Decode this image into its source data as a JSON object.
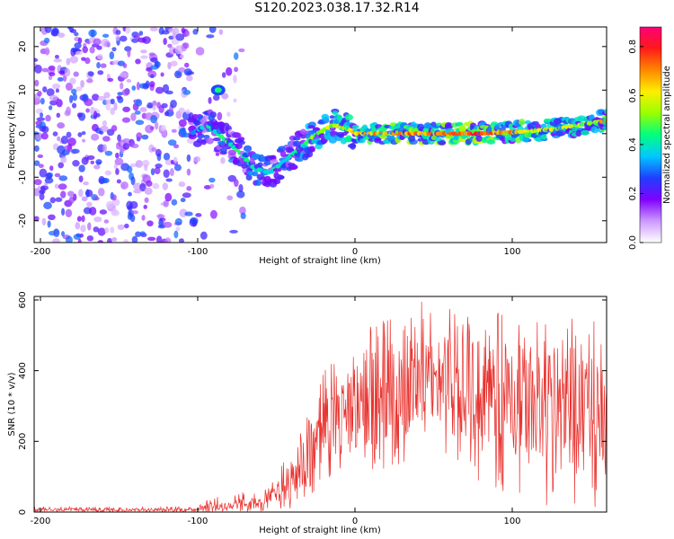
{
  "title": "S120.2023.038.17.32.R14",
  "chart_data": [
    {
      "type": "heatmap",
      "xlabel": "Height of straight line (km)",
      "ylabel": "Frequency (Hz)",
      "xlim": [
        -204,
        160
      ],
      "ylim": [
        -25,
        24.5
      ],
      "xticks": [
        -200,
        -100,
        0,
        100
      ],
      "yticks": [
        -20,
        -10,
        0,
        10,
        20
      ],
      "colorbar": {
        "label": "Normalized spectral amplitude",
        "range": [
          0,
          0.88
        ],
        "ticks": [
          0.0,
          0.2,
          0.4,
          0.6,
          0.8
        ],
        "colors": [
          "#ffffff",
          "#cc99ff",
          "#7f00ff",
          "#1f3fff",
          "#00c8ff",
          "#00ff7f",
          "#99ff00",
          "#ffee00",
          "#ff8800",
          "#ff1a1a",
          "#ff0077"
        ]
      },
      "ridge": {
        "x": [
          -105,
          -95,
          -85,
          -75,
          -65,
          -55,
          -45,
          -35,
          -25,
          -15,
          -5,
          0,
          25,
          50,
          75,
          100,
          125,
          150,
          160
        ],
        "y": [
          0,
          2,
          -1,
          -4,
          -8,
          -9,
          -6,
          -3,
          0,
          2,
          1,
          0,
          0,
          0,
          0,
          0.3,
          1,
          2.5,
          3
        ],
        "amplitude": [
          0.35,
          0.4,
          0.45,
          0.45,
          0.45,
          0.4,
          0.4,
          0.45,
          0.55,
          0.6,
          0.6,
          0.65,
          0.75,
          0.75,
          0.8,
          0.7,
          0.6,
          0.55,
          0.75
        ]
      },
      "blob": {
        "x": -87,
        "y": 10,
        "amplitude": 0.45
      }
    },
    {
      "type": "line",
      "xlabel": "Height of straight line (km)",
      "ylabel": "SNR (10 * v/v)",
      "xlim": [
        -204,
        160
      ],
      "ylim": [
        0,
        610
      ],
      "xticks": [
        -200,
        -100,
        0,
        100
      ],
      "yticks": [
        0,
        200,
        400,
        600
      ],
      "color": "#e8322e",
      "envelope": {
        "x": [
          -204,
          -120,
          -100,
          -90,
          -80,
          -70,
          -60,
          -50,
          -40,
          -30,
          -20,
          -10,
          0,
          20,
          40,
          60,
          80,
          100,
          120,
          140,
          160
        ],
        "min": [
          0,
          0,
          0,
          0,
          0,
          0,
          0,
          5,
          10,
          15,
          50,
          80,
          100,
          120,
          150,
          100,
          80,
          50,
          20,
          10,
          10
        ],
        "max": [
          15,
          15,
          20,
          50,
          40,
          60,
          50,
          100,
          200,
          300,
          400,
          450,
          500,
          550,
          600,
          580,
          570,
          560,
          560,
          600,
          500
        ],
        "mean": [
          7,
          7,
          8,
          15,
          15,
          25,
          25,
          50,
          90,
          150,
          230,
          270,
          300,
          330,
          350,
          350,
          340,
          320,
          310,
          290,
          250
        ]
      }
    }
  ]
}
